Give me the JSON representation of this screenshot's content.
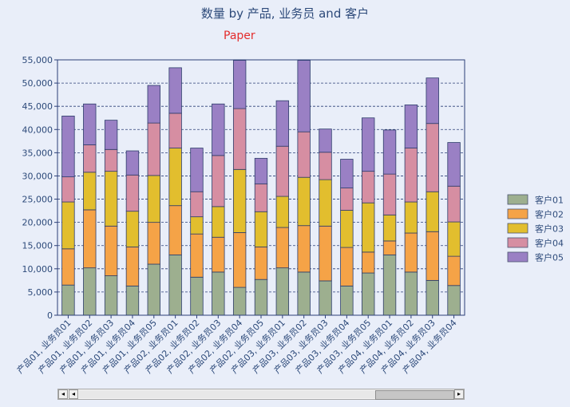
{
  "chart_data": {
    "type": "bar",
    "stacked": true,
    "title": "数量 by 产品, 业务员 and 客户",
    "subtitle": "Paper",
    "ylim": [
      0,
      55000
    ],
    "yticks": [
      "0",
      "5,000",
      "10,000",
      "15,000",
      "20,000",
      "25,000",
      "30,000",
      "35,000",
      "40,000",
      "45,000",
      "50,000",
      "55,000"
    ],
    "grid": true,
    "legend_position": "right",
    "categories": [
      "产品01, 业务员01",
      "产品01, 业务员02",
      "产品01, 业务员03",
      "产品01, 业务员04",
      "产品01, 业务员05",
      "产品02, 业务员01",
      "产品02, 业务员02",
      "产品02, 业务员03",
      "产品02, 业务员04",
      "产品02, 业务员05",
      "产品03, 业务员01",
      "产品03, 业务员02",
      "产品03, 业务员03",
      "产品03, 业务员04",
      "产品03, 业务员05",
      "产品04, 业务员01",
      "产品04, 业务员02",
      "产品04, 业务员03",
      "产品04, 业务员04"
    ],
    "series": [
      {
        "name": "客户01",
        "color": "#9daf8f",
        "values": [
          6500,
          10200,
          8500,
          6300,
          11000,
          13000,
          8200,
          9300,
          6000,
          7700,
          10200,
          9300,
          7400,
          6300,
          9100,
          13000,
          9300,
          7500,
          6400
        ]
      },
      {
        "name": "客户02",
        "color": "#f5a347",
        "values": [
          7800,
          12500,
          10700,
          8400,
          9000,
          10600,
          9300,
          7500,
          11800,
          7000,
          8700,
          10000,
          11800,
          8300,
          4500,
          3000,
          8400,
          10500,
          6300
        ]
      },
      {
        "name": "客户03",
        "color": "#e2be2e",
        "values": [
          10100,
          8100,
          11800,
          7700,
          10100,
          12400,
          3700,
          6600,
          13600,
          7600,
          6700,
          10400,
          10000,
          8000,
          10600,
          5600,
          6700,
          8600,
          7400
        ]
      },
      {
        "name": "客户04",
        "color": "#d68ea2",
        "values": [
          5400,
          5900,
          4700,
          7800,
          11300,
          7500,
          5400,
          11000,
          13100,
          6000,
          10800,
          9800,
          5900,
          4800,
          6800,
          8800,
          11600,
          14700,
          7700
        ]
      },
      {
        "name": "客户05",
        "color": "#9a80c4",
        "values": [
          13100,
          8800,
          6300,
          5200,
          8100,
          9800,
          9400,
          11100,
          10400,
          5500,
          9800,
          15400,
          5000,
          6200,
          11500,
          9500,
          9300,
          9800,
          9400
        ]
      }
    ]
  },
  "scrollbar": {
    "left_arrow": "◂",
    "right_arrow": "▸",
    "left_double": "◂",
    "position_fraction": 0.79,
    "thumb_fraction": 0.21
  }
}
